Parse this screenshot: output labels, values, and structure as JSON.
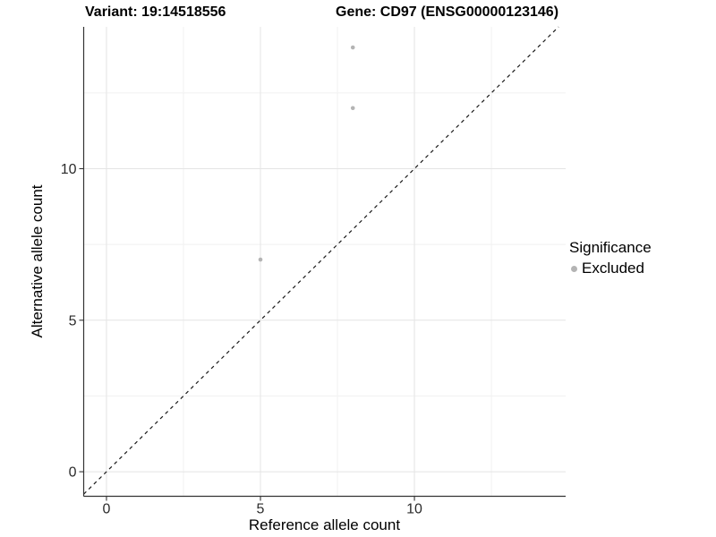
{
  "header": {
    "variant_title": "Variant: 19:14518556",
    "gene_title": "Gene: CD97 (ENSG00000123146)"
  },
  "axes": {
    "x": {
      "label": "Reference allele count",
      "tick_labels": [
        "0",
        "5",
        "10"
      ]
    },
    "y": {
      "label": "Alternative allele count",
      "tick_labels": [
        "0",
        "5",
        "10"
      ]
    }
  },
  "legend": {
    "title": "Significance",
    "items": [
      {
        "label": "Excluded",
        "color": "#b4b4b4",
        "marker": "circle"
      }
    ]
  },
  "colors": {
    "background": "#ffffff",
    "grid_major": "#e4e4e4",
    "grid_minor": "#f1f1f1",
    "axis": "#333333",
    "tick_text": "#2b2b2b",
    "title_text": "#000000"
  },
  "chart_data": {
    "type": "scatter",
    "title": "Variant: 19:14518556 / Gene: CD97 (ENSG00000123146)",
    "xlabel": "Reference allele count",
    "ylabel": "Alternative allele count",
    "xlim": [
      -0.74,
      14.91
    ],
    "ylim": [
      -0.81,
      14.68
    ],
    "x_ticks": [
      {
        "v": 0,
        "label": "0"
      },
      {
        "v": 5,
        "label": "5"
      },
      {
        "v": 10,
        "label": "10"
      }
    ],
    "y_ticks": [
      {
        "v": 0,
        "label": "0"
      },
      {
        "v": 5,
        "label": "5"
      },
      {
        "v": 10,
        "label": "10"
      }
    ],
    "grid": {
      "x_major": [
        0,
        5,
        10
      ],
      "x_minor": [
        2.5,
        7.5,
        12.5
      ],
      "y_major": [
        0,
        5,
        10
      ],
      "y_minor": [
        2.5,
        7.5,
        12.5
      ]
    },
    "series": [
      {
        "name": "Excluded",
        "color": "#b4b4b4",
        "points": [
          {
            "x": 8,
            "y": 14
          },
          {
            "x": 8,
            "y": 12
          },
          {
            "x": 5,
            "y": 7
          }
        ]
      }
    ],
    "reference_line": {
      "slope": 1,
      "intercept": 0,
      "style": "dashed",
      "color": "#1a1a1a"
    },
    "legend_position": "right",
    "grid_on": true
  }
}
